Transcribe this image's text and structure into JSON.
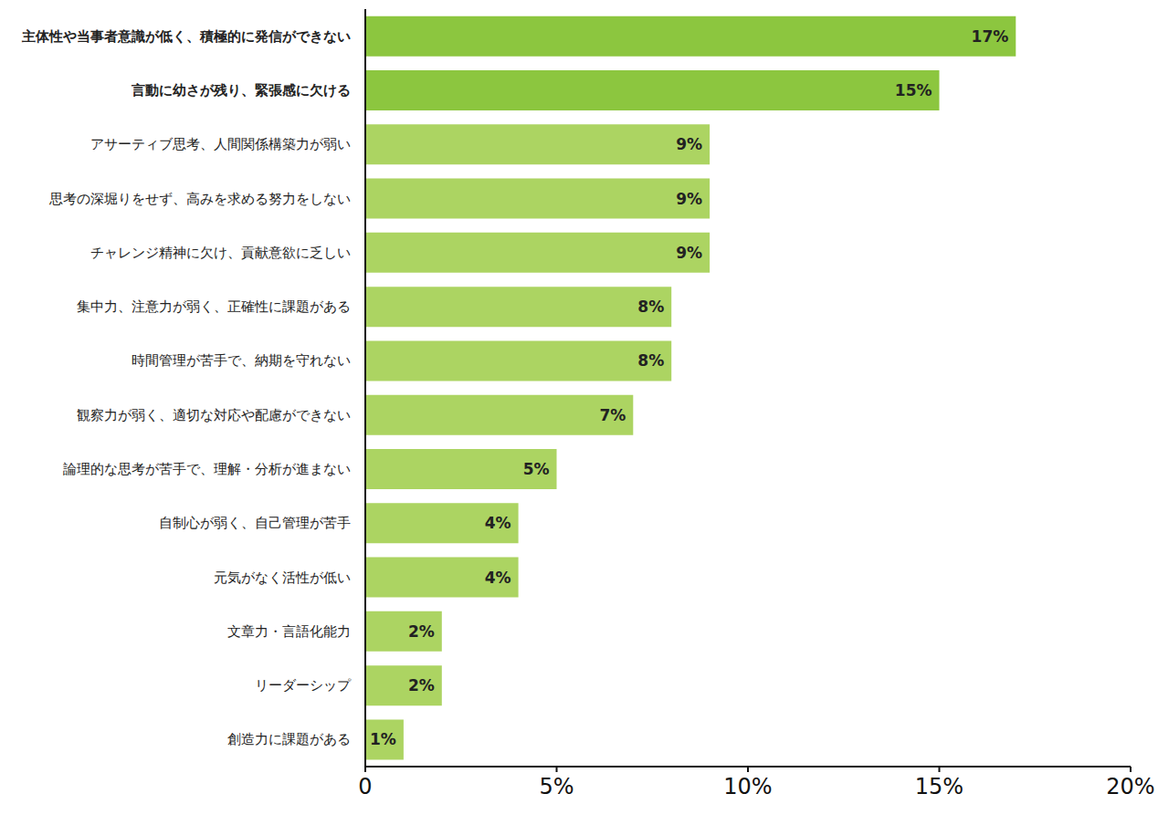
{
  "chart_data": {
    "type": "bar",
    "orientation": "horizontal",
    "categories": [
      "主体性や当事者意識が低く、積極的に発信ができない",
      "言動に幼さが残り、緊張感に欠ける",
      "アサーティブ思考、人間関係構築力が弱い",
      "思考の深堀りをせず、高みを求める努力をしない",
      "チャレンジ精神に欠け、貢献意欲に乏しい",
      "集中力、注意力が弱く、正確性に課題がある",
      "時間管理が苦手で、納期を守れない",
      "観察力が弱く、適切な対応や配慮ができない",
      "論理的な思考が苦手で、理解・分析が進まない",
      "自制心が弱く、自己管理が苦手",
      "元気がなく活性が低い",
      "文章力・言語化能力",
      "リーダーシップ",
      "創造力に課題がある"
    ],
    "values": [
      17,
      15,
      9,
      9,
      9,
      8,
      8,
      7,
      5,
      4,
      4,
      2,
      2,
      1
    ],
    "value_labels": [
      "17%",
      "15%",
      "9%",
      "9%",
      "9%",
      "8%",
      "8%",
      "7%",
      "5%",
      "4%",
      "4%",
      "2%",
      "2%",
      "1%"
    ],
    "data_labels": true,
    "colors": [
      "#8cc63f",
      "#8cc63f",
      "#acd462",
      "#acd462",
      "#acd462",
      "#acd462",
      "#acd462",
      "#acd462",
      "#acd462",
      "#acd462",
      "#acd462",
      "#acd462",
      "#acd462",
      "#acd462"
    ],
    "xlim": [
      0,
      20
    ],
    "xticks": [
      0,
      {
        "value": 5,
        "label": "5%"
      },
      {
        "value": 10,
        "label": "10%"
      },
      {
        "value": 15,
        "label": "15%"
      },
      {
        "value": 20,
        "label": "20%"
      }
    ],
    "grid": false
  }
}
